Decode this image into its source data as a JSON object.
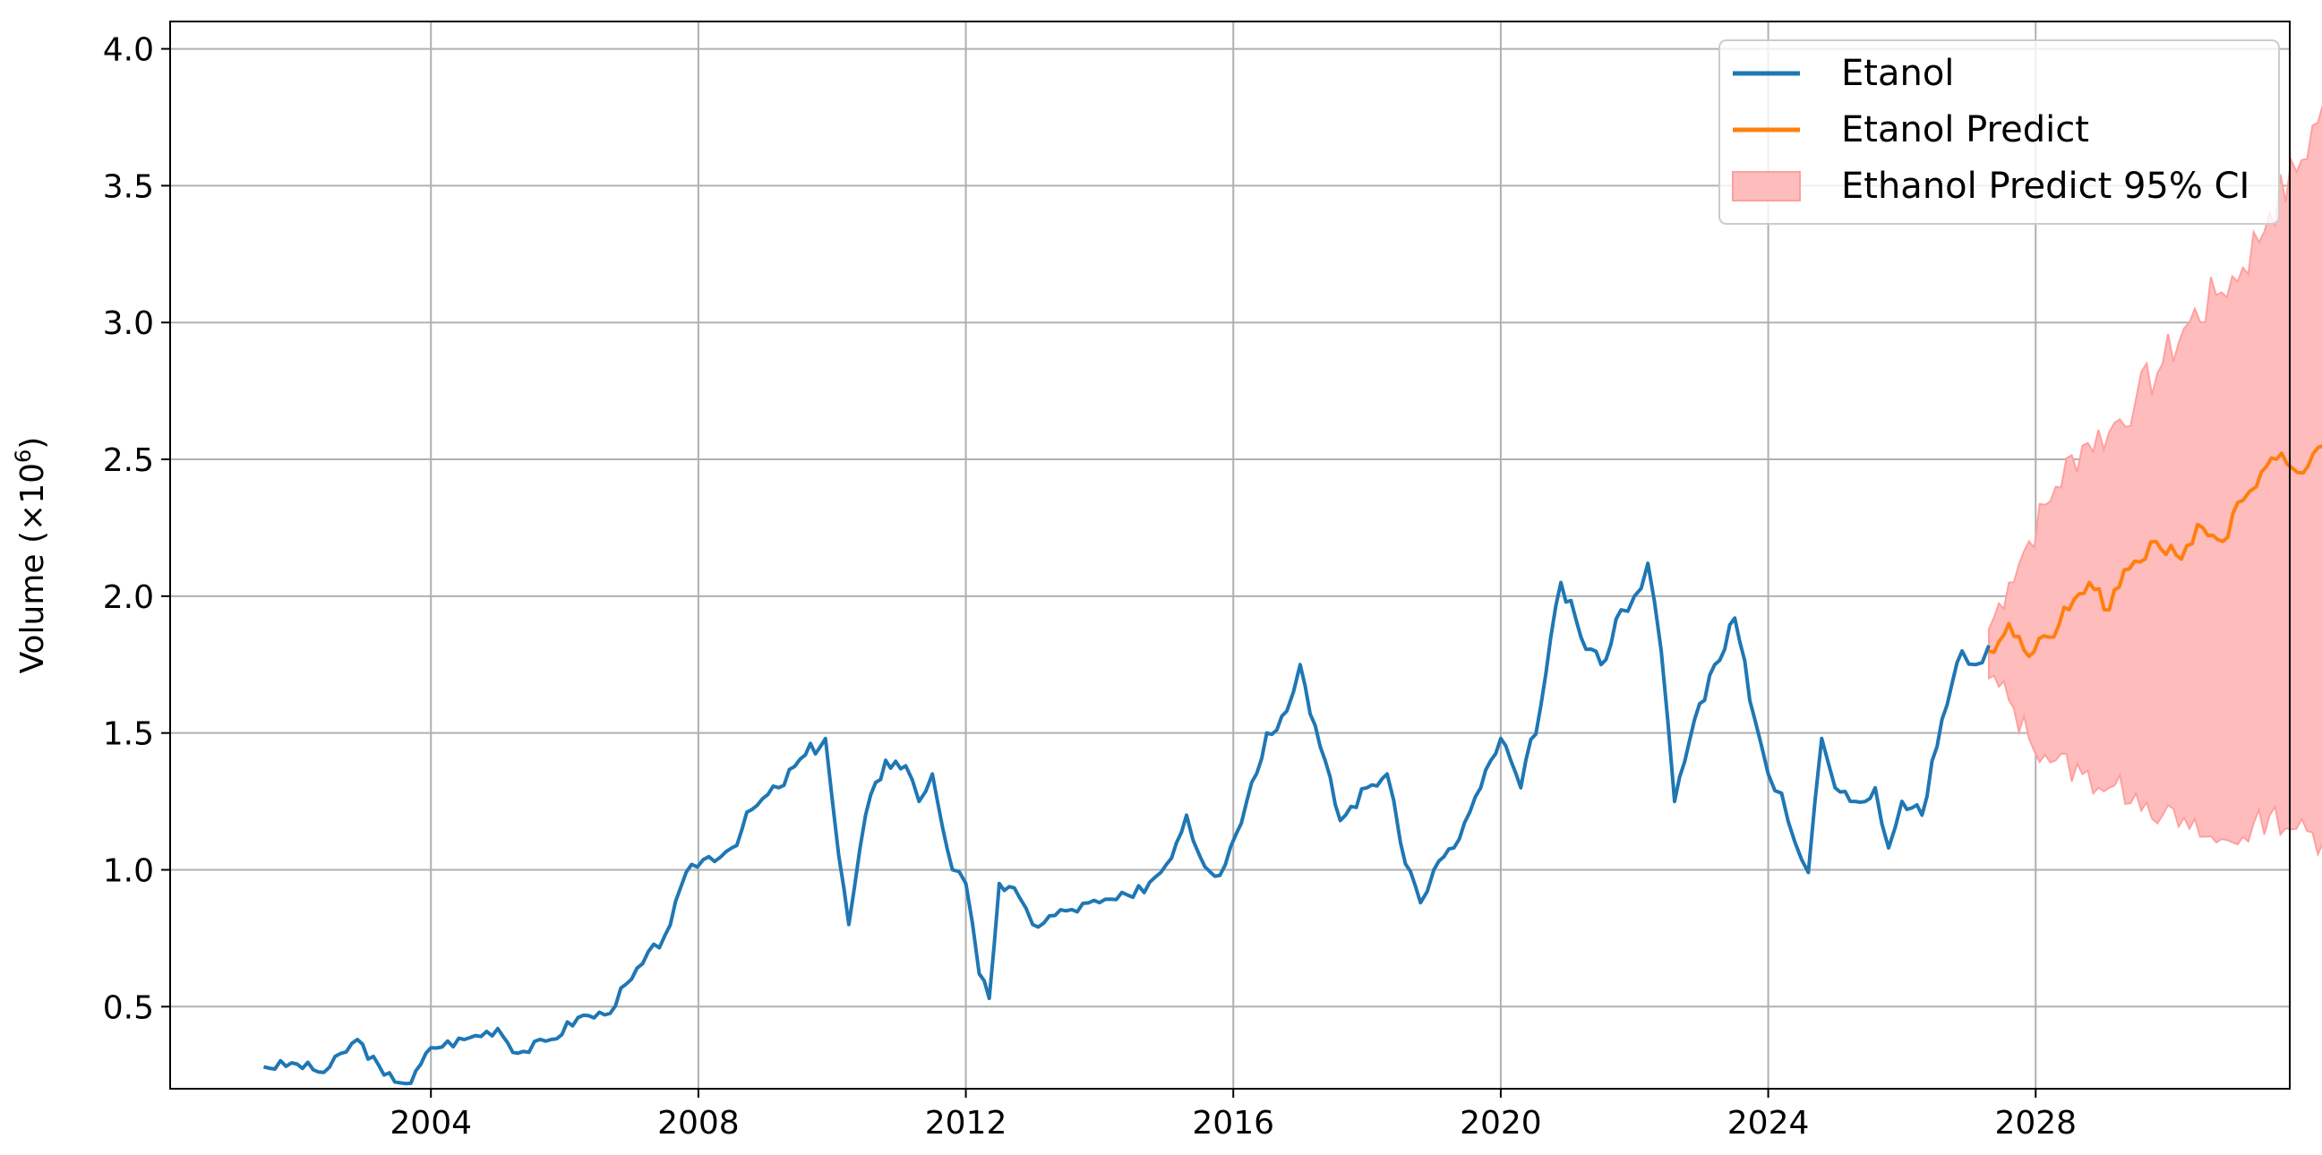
{
  "chart_data": {
    "type": "line",
    "ylabel": "Volume (×10",
    "ylabel_exp": "6",
    "ylabel_close": ")",
    "xlabel": "",
    "x_ticks": [
      "2004",
      "2008",
      "2012",
      "2016",
      "2020",
      "2024",
      "2028"
    ],
    "y_ticks": [
      "0.5",
      "1.0",
      "1.5",
      "2.0",
      "2.5",
      "3.0",
      "3.5",
      "4.0"
    ],
    "xlim": [
      2000.1,
      2031.8
    ],
    "ylim": [
      0.2,
      4.1
    ],
    "grid": true,
    "legend_position": "top-right",
    "colors": {
      "actual": "#1f77b4",
      "predict": "#ff7f0e",
      "ci_fill": "#ffbcbc",
      "ci_edge": "#ff9f9f",
      "grid": "#b0b0b0"
    },
    "series": [
      {
        "name": "Etanol",
        "anchors": [
          [
            2001.5,
            0.28
          ],
          [
            2002.0,
            0.29
          ],
          [
            2002.4,
            0.26
          ],
          [
            2002.9,
            0.38
          ],
          [
            2003.3,
            0.25
          ],
          [
            2003.7,
            0.22
          ],
          [
            2004.0,
            0.35
          ],
          [
            2004.5,
            0.38
          ],
          [
            2005.0,
            0.42
          ],
          [
            2005.3,
            0.33
          ],
          [
            2005.8,
            0.38
          ],
          [
            2006.2,
            0.46
          ],
          [
            2006.6,
            0.47
          ],
          [
            2007.0,
            0.6
          ],
          [
            2007.5,
            0.76
          ],
          [
            2007.9,
            1.02
          ],
          [
            2008.5,
            1.08
          ],
          [
            2008.8,
            1.22
          ],
          [
            2009.2,
            1.3
          ],
          [
            2009.6,
            1.42
          ],
          [
            2009.9,
            1.48
          ],
          [
            2010.1,
            1.05
          ],
          [
            2010.25,
            0.8
          ],
          [
            2010.5,
            1.2
          ],
          [
            2010.8,
            1.4
          ],
          [
            2011.1,
            1.38
          ],
          [
            2011.3,
            1.25
          ],
          [
            2011.5,
            1.35
          ],
          [
            2011.8,
            1.0
          ],
          [
            2012.0,
            0.95
          ],
          [
            2012.2,
            0.62
          ],
          [
            2012.35,
            0.53
          ],
          [
            2012.5,
            0.95
          ],
          [
            2012.8,
            0.9
          ],
          [
            2013.0,
            0.8
          ],
          [
            2013.5,
            0.85
          ],
          [
            2014.0,
            0.88
          ],
          [
            2014.5,
            0.9
          ],
          [
            2015.0,
            1.02
          ],
          [
            2015.3,
            1.2
          ],
          [
            2015.5,
            1.05
          ],
          [
            2015.8,
            0.98
          ],
          [
            2016.2,
            1.25
          ],
          [
            2016.5,
            1.5
          ],
          [
            2016.8,
            1.58
          ],
          [
            2017.0,
            1.75
          ],
          [
            2017.3,
            1.45
          ],
          [
            2017.6,
            1.18
          ],
          [
            2018.0,
            1.3
          ],
          [
            2018.3,
            1.35
          ],
          [
            2018.5,
            1.1
          ],
          [
            2018.8,
            0.88
          ],
          [
            2019.0,
            1.0
          ],
          [
            2019.3,
            1.08
          ],
          [
            2019.7,
            1.3
          ],
          [
            2020.0,
            1.48
          ],
          [
            2020.3,
            1.3
          ],
          [
            2020.6,
            1.6
          ],
          [
            2020.9,
            2.05
          ],
          [
            2021.2,
            1.85
          ],
          [
            2021.5,
            1.75
          ],
          [
            2021.8,
            1.95
          ],
          [
            2022.0,
            2.0
          ],
          [
            2022.2,
            2.12
          ],
          [
            2022.4,
            1.8
          ],
          [
            2022.6,
            1.25
          ],
          [
            2022.9,
            1.55
          ],
          [
            2023.2,
            1.75
          ],
          [
            2023.5,
            1.92
          ],
          [
            2023.8,
            1.55
          ],
          [
            2024.0,
            1.35
          ],
          [
            2024.2,
            1.28
          ],
          [
            2024.4,
            1.1
          ],
          [
            2024.6,
            0.99
          ],
          [
            2024.8,
            1.48
          ],
          [
            2025.0,
            1.3
          ],
          [
            2025.3,
            1.25
          ],
          [
            2025.6,
            1.3
          ],
          [
            2025.8,
            1.08
          ],
          [
            2026.0,
            1.25
          ],
          [
            2026.3,
            1.2
          ],
          [
            2026.6,
            1.55
          ],
          [
            2026.9,
            1.8
          ],
          [
            2027.1,
            1.75
          ],
          [
            2027.3,
            1.82
          ]
        ]
      },
      {
        "name": "Etanol Predict",
        "anchors": [
          [
            2027.3,
            1.8
          ],
          [
            2027.6,
            1.9
          ],
          [
            2027.9,
            1.78
          ],
          [
            2028.2,
            1.85
          ],
          [
            2028.5,
            1.95
          ],
          [
            2028.8,
            2.05
          ],
          [
            2029.1,
            1.95
          ],
          [
            2029.4,
            2.1
          ],
          [
            2029.8,
            2.2
          ],
          [
            2030.1,
            2.15
          ],
          [
            2030.5,
            2.25
          ],
          [
            2030.8,
            2.2
          ],
          [
            2031.1,
            2.35
          ],
          [
            2031.3,
            2.4
          ],
          [
            2031.6,
            2.5
          ],
          [
            2032.0,
            2.45
          ],
          [
            2032.3,
            2.55
          ],
          [
            2032.6,
            2.5
          ],
          [
            2032.9,
            2.45
          ]
        ]
      },
      {
        "name": "Ethanol Predict 95% CI",
        "upper": [
          [
            2027.3,
            1.88
          ],
          [
            2027.6,
            2.05
          ],
          [
            2027.9,
            2.2
          ],
          [
            2028.3,
            2.4
          ],
          [
            2028.7,
            2.55
          ],
          [
            2029.1,
            2.6
          ],
          [
            2029.5,
            2.72
          ],
          [
            2029.9,
            2.85
          ],
          [
            2030.3,
            3.0
          ],
          [
            2030.7,
            3.1
          ],
          [
            2031.1,
            3.2
          ],
          [
            2031.5,
            3.4
          ],
          [
            2031.9,
            3.55
          ],
          [
            2032.3,
            3.8
          ],
          [
            2032.7,
            3.95
          ],
          [
            2032.9,
            3.98
          ]
        ],
        "lower": [
          [
            2027.3,
            1.7
          ],
          [
            2027.6,
            1.62
          ],
          [
            2027.9,
            1.48
          ],
          [
            2028.3,
            1.4
          ],
          [
            2028.7,
            1.35
          ],
          [
            2029.1,
            1.3
          ],
          [
            2029.5,
            1.28
          ],
          [
            2029.9,
            1.2
          ],
          [
            2030.3,
            1.15
          ],
          [
            2030.7,
            1.1
          ],
          [
            2031.1,
            1.12
          ],
          [
            2031.5,
            1.2
          ],
          [
            2031.9,
            1.15
          ],
          [
            2032.3,
            1.1
          ],
          [
            2032.6,
            0.95
          ],
          [
            2032.75,
            0.8
          ],
          [
            2032.9,
            0.95
          ]
        ]
      }
    ]
  }
}
